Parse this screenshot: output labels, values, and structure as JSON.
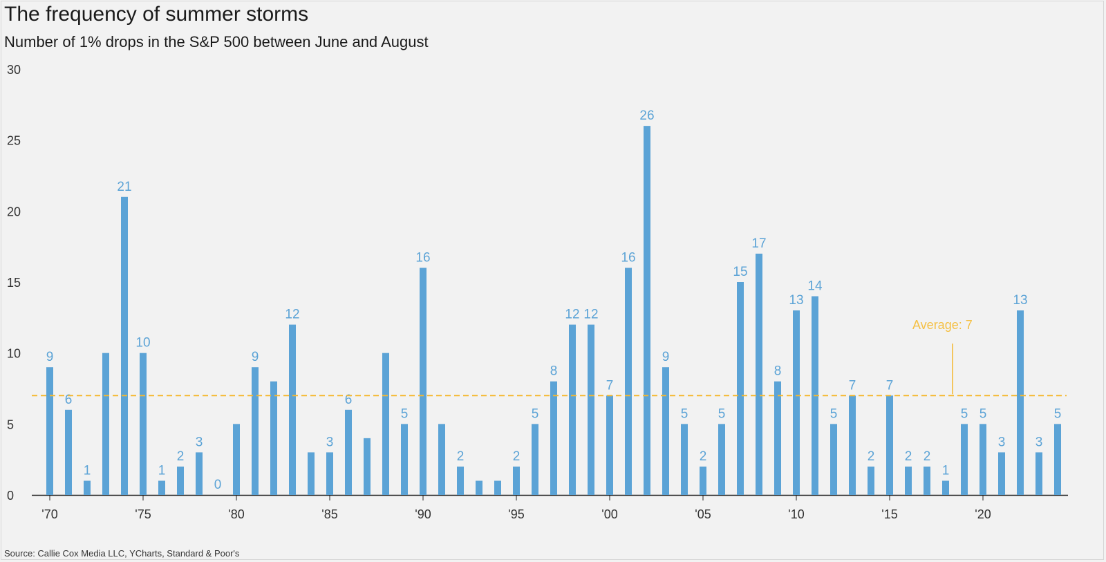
{
  "title": "The frequency of summer storms",
  "subtitle": "Number of 1% drops in the S&P 500 between June and August",
  "source": "Source: Callie Cox Media LLC, YCharts, Standard & Poor's",
  "colors": {
    "bar": "#5ba3d6",
    "average": "#f5b82e",
    "background": "#f2f2f2"
  },
  "chart_data": {
    "type": "bar",
    "title": "The frequency of summer storms",
    "subtitle": "Number of 1% drops in the S&P 500 between June and August",
    "xlabel": "",
    "ylabel": "",
    "ylim": [
      0,
      30
    ],
    "yticks": [
      0,
      5,
      10,
      15,
      20,
      25,
      30
    ],
    "x_tick_labels": [
      {
        "year": 1970,
        "label": "'70"
      },
      {
        "year": 1975,
        "label": "'75"
      },
      {
        "year": 1980,
        "label": "'80"
      },
      {
        "year": 1985,
        "label": "'85"
      },
      {
        "year": 1990,
        "label": "'90"
      },
      {
        "year": 1995,
        "label": "'95"
      },
      {
        "year": 2000,
        "label": "'00"
      },
      {
        "year": 2005,
        "label": "'05"
      },
      {
        "year": 2010,
        "label": "'10"
      },
      {
        "year": 2015,
        "label": "'15"
      },
      {
        "year": 2020,
        "label": "'20"
      }
    ],
    "categories": [
      1970,
      1971,
      1972,
      1973,
      1974,
      1975,
      1976,
      1977,
      1978,
      1979,
      1980,
      1981,
      1982,
      1983,
      1984,
      1985,
      1986,
      1987,
      1988,
      1989,
      1990,
      1991,
      1992,
      1993,
      1994,
      1995,
      1996,
      1997,
      1998,
      1999,
      2000,
      2001,
      2002,
      2003,
      2004,
      2005,
      2006,
      2007,
      2008,
      2009,
      2010,
      2011,
      2012,
      2013,
      2014,
      2015,
      2016,
      2017,
      2018,
      2019,
      2020,
      2021,
      2022,
      2023,
      2024
    ],
    "values": [
      9,
      6,
      1,
      10,
      21,
      10,
      1,
      2,
      3,
      0,
      5,
      9,
      8,
      12,
      3,
      3,
      6,
      4,
      10,
      5,
      16,
      5,
      2,
      1,
      1,
      2,
      5,
      8,
      12,
      12,
      7,
      16,
      26,
      9,
      5,
      2,
      5,
      15,
      17,
      8,
      13,
      14,
      5,
      7,
      2,
      7,
      2,
      2,
      1,
      5,
      5,
      3,
      13,
      3,
      5
    ],
    "labeled_years": [
      1970,
      1971,
      1972,
      1974,
      1975,
      1976,
      1977,
      1978,
      1979,
      1981,
      1983,
      1985,
      1986,
      1989,
      1990,
      1992,
      1995,
      1996,
      1997,
      1998,
      1999,
      2000,
      2001,
      2002,
      2003,
      2004,
      2005,
      2006,
      2007,
      2008,
      2009,
      2010,
      2011,
      2012,
      2013,
      2014,
      2015,
      2016,
      2017,
      2018,
      2019,
      2020,
      2021,
      2022,
      2023,
      2024
    ],
    "average": {
      "value": 7,
      "label": "Average: 7"
    },
    "grid": false,
    "legend": "none"
  }
}
